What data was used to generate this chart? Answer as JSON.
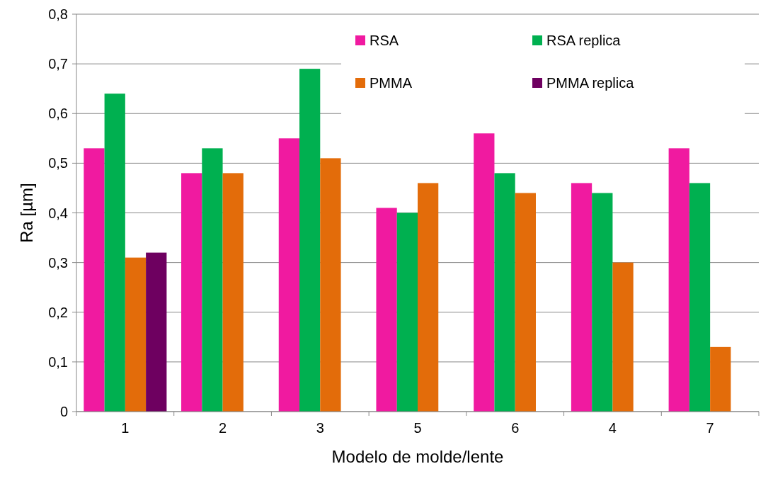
{
  "chart_data": {
    "type": "bar",
    "xlabel": "Modelo de molde/lente",
    "ylabel": "Ra [µm]",
    "categories": [
      "1",
      "2",
      "3",
      "5",
      "6",
      "4",
      "7"
    ],
    "series": [
      {
        "name": "RSA",
        "color": "#f01aa0",
        "values": [
          0.53,
          0.48,
          0.55,
          0.41,
          0.56,
          0.46,
          0.53
        ]
      },
      {
        "name": "RSA replica",
        "color": "#00b050",
        "values": [
          0.64,
          0.53,
          0.69,
          0.4,
          0.48,
          0.44,
          0.46
        ]
      },
      {
        "name": "PMMA",
        "color": "#e36c0a",
        "values": [
          0.31,
          0.48,
          0.51,
          0.46,
          0.44,
          0.3,
          0.13
        ]
      },
      {
        "name": "PMMA replica",
        "color": "#6e0060",
        "values": [
          0.32,
          null,
          null,
          null,
          null,
          null,
          null
        ]
      }
    ],
    "ylim": [
      0,
      0.8
    ],
    "yticks": [
      0,
      {
        "value": 0.1,
        "label": "0,1"
      },
      {
        "value": 0.2,
        "label": "0,2"
      },
      {
        "value": 0.3,
        "label": "0,3"
      },
      {
        "value": 0.4,
        "label": "0,4"
      },
      {
        "value": 0.5,
        "label": "0,5"
      },
      {
        "value": 0.6,
        "label": "0,6"
      },
      {
        "value": 0.7,
        "label": "0,7"
      },
      {
        "value": 0.8,
        "label": "0,8"
      }
    ],
    "grid": "y",
    "legend": "top right"
  }
}
